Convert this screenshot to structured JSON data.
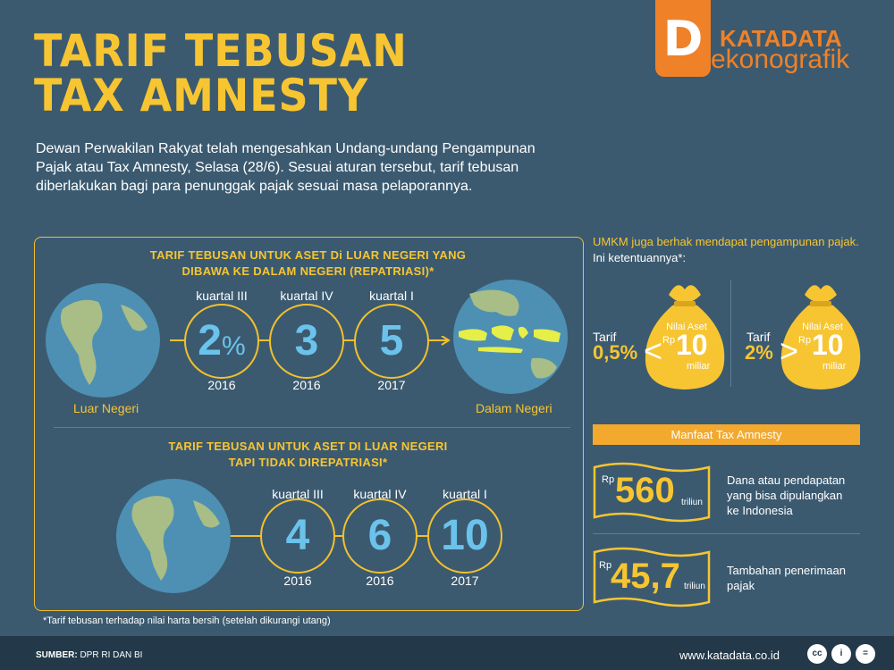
{
  "title": {
    "line1": "TARIF TEBUSAN",
    "line2": "TAX AMNESTY"
  },
  "logo": {
    "letter": "D",
    "brand1": "KATADATA",
    "brand2a": "ekono",
    "brand2b": "grafik"
  },
  "intro": "Dewan Perwakilan Rakyat telah mengesahkan Undang-undang Pengampunan Pajak atau Tax Amnesty, Selasa (28/6). Sesuai aturan tersebut, tarif tebusan diberlakukan bagi para penunggak pajak sesuai masa pelaporannya.",
  "repatriasi": {
    "heading1": "TARIF TEBUSAN UNTUK ASET Di LUAR NEGERI YANG",
    "heading2": "DIBAWA KE DALAM NEGERI (REPATRIASI)*",
    "left_label": "Luar Negeri",
    "right_label": "Dalam Negeri",
    "items": [
      {
        "quarter": "kuartal III",
        "value": "2",
        "unit": "%",
        "year": "2016"
      },
      {
        "quarter": "kuartal IV",
        "value": "3",
        "unit": "",
        "year": "2016"
      },
      {
        "quarter": "kuartal I",
        "value": "5",
        "unit": "",
        "year": "2017"
      }
    ]
  },
  "non_repatriasi": {
    "heading1": "TARIF TEBUSAN UNTUK ASET DI LUAR NEGERI",
    "heading2": "TAPI TIDAK DIREPATRIASI*",
    "items": [
      {
        "quarter": "kuartal III",
        "value": "4",
        "year": "2016"
      },
      {
        "quarter": "kuartal IV",
        "value": "6",
        "year": "2016"
      },
      {
        "quarter": "kuartal I",
        "value": "10",
        "year": "2017"
      }
    ]
  },
  "footnote": "*Tarif tebusan terhadap nilai harta bersih (setelah dikurangi utang)",
  "umkm": {
    "heading1": "UMKM juga berhak mendapat pengampunan pajak.",
    "heading2": "Ini ketentuannya*:",
    "left": {
      "tarif_label": "Tarif",
      "tarif_value": "0,5%",
      "symbol": "<",
      "asset_label": "Nilai Aset",
      "currency": "Rp",
      "amount": "10",
      "unit": "miliar"
    },
    "right": {
      "tarif_label": "Tarif",
      "tarif_value": "2%",
      "symbol": ">",
      "asset_label": "Nilai Aset",
      "currency": "Rp",
      "amount": "10",
      "unit": "miliar"
    }
  },
  "manfaat": {
    "title": "Manfaat Tax Amnesty",
    "items": [
      {
        "currency": "Rp",
        "amount": "560",
        "unit": "triliun",
        "desc1": "Dana atau pendapatan",
        "desc2": "yang bisa dipulangkan",
        "desc3": "ke Indonesia"
      },
      {
        "currency": "Rp",
        "amount": "45,7",
        "unit": "triliun",
        "desc1": "Tambahan penerimaan",
        "desc2": "pajak",
        "desc3": ""
      }
    ]
  },
  "footer": {
    "source_label": "SUMBER:",
    "source_value": "DPR RI DAN BI",
    "url": "www.katadata.co.id",
    "license": [
      "cc",
      "i",
      "="
    ]
  },
  "colors": {
    "background": "#3b5a70",
    "accent": "#f7c531",
    "blue": "#6bc3ec",
    "orange": "#ef8128"
  }
}
